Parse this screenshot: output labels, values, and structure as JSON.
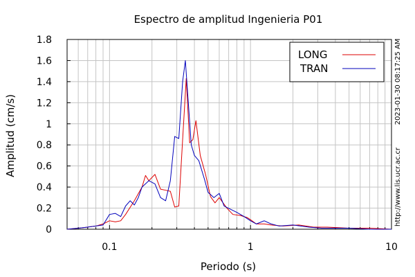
{
  "chart_data": {
    "type": "line",
    "title": "Espectro de amplitud Ingenieria P01",
    "xlabel": "Periodo (s)",
    "ylabel": "Amplitud (cm/s)",
    "x_scale": "log",
    "xlim": [
      0.05,
      10
    ],
    "ylim": [
      0,
      1.8
    ],
    "grid": true,
    "legend_position": "top-right",
    "x_ticks": [
      {
        "value": 0.1,
        "label": "0.1"
      },
      {
        "value": 1,
        "label": "1"
      },
      {
        "value": 10,
        "label": "10"
      }
    ],
    "y_ticks": [
      {
        "value": 0,
        "label": "0"
      },
      {
        "value": 0.2,
        "label": "0.2"
      },
      {
        "value": 0.4,
        "label": "0.4"
      },
      {
        "value": 0.6,
        "label": "0.6"
      },
      {
        "value": 0.8,
        "label": "0.8"
      },
      {
        "value": 1.0,
        "label": "1"
      },
      {
        "value": 1.2,
        "label": "1.2"
      },
      {
        "value": 1.4,
        "label": "1.4"
      },
      {
        "value": 1.6,
        "label": "1.6"
      },
      {
        "value": 1.8,
        "label": "1.8"
      }
    ],
    "series": [
      {
        "name": "LONG",
        "color": "#dd0000",
        "points": [
          [
            0.05,
            0.0
          ],
          [
            0.06,
            0.01
          ],
          [
            0.07,
            0.02
          ],
          [
            0.08,
            0.03
          ],
          [
            0.09,
            0.05
          ],
          [
            0.1,
            0.08
          ],
          [
            0.11,
            0.07
          ],
          [
            0.12,
            0.08
          ],
          [
            0.13,
            0.14
          ],
          [
            0.15,
            0.27
          ],
          [
            0.17,
            0.4
          ],
          [
            0.18,
            0.51
          ],
          [
            0.19,
            0.46
          ],
          [
            0.21,
            0.52
          ],
          [
            0.23,
            0.38
          ],
          [
            0.25,
            0.37
          ],
          [
            0.27,
            0.36
          ],
          [
            0.29,
            0.21
          ],
          [
            0.31,
            0.22
          ],
          [
            0.33,
            0.85
          ],
          [
            0.35,
            1.43
          ],
          [
            0.37,
            0.82
          ],
          [
            0.39,
            0.85
          ],
          [
            0.41,
            1.03
          ],
          [
            0.44,
            0.7
          ],
          [
            0.48,
            0.52
          ],
          [
            0.52,
            0.31
          ],
          [
            0.56,
            0.25
          ],
          [
            0.6,
            0.3
          ],
          [
            0.68,
            0.2
          ],
          [
            0.75,
            0.14
          ],
          [
            0.85,
            0.13
          ],
          [
            0.95,
            0.11
          ],
          [
            1.0,
            0.09
          ],
          [
            1.1,
            0.05
          ],
          [
            1.25,
            0.05
          ],
          [
            1.4,
            0.04
          ],
          [
            1.7,
            0.03
          ],
          [
            2.2,
            0.04
          ],
          [
            2.8,
            0.02
          ],
          [
            3.5,
            0.02
          ],
          [
            5.0,
            0.01
          ],
          [
            7.0,
            0.01
          ],
          [
            10.0,
            0.0
          ]
        ]
      },
      {
        "name": "TRAN",
        "color": "#0000bb",
        "points": [
          [
            0.05,
            0.0
          ],
          [
            0.06,
            0.01
          ],
          [
            0.07,
            0.02
          ],
          [
            0.08,
            0.03
          ],
          [
            0.09,
            0.04
          ],
          [
            0.1,
            0.14
          ],
          [
            0.11,
            0.15
          ],
          [
            0.12,
            0.12
          ],
          [
            0.13,
            0.22
          ],
          [
            0.14,
            0.27
          ],
          [
            0.15,
            0.23
          ],
          [
            0.16,
            0.3
          ],
          [
            0.17,
            0.4
          ],
          [
            0.19,
            0.46
          ],
          [
            0.21,
            0.43
          ],
          [
            0.23,
            0.3
          ],
          [
            0.25,
            0.27
          ],
          [
            0.27,
            0.46
          ],
          [
            0.29,
            0.88
          ],
          [
            0.31,
            0.86
          ],
          [
            0.33,
            1.4
          ],
          [
            0.345,
            1.6
          ],
          [
            0.36,
            1.25
          ],
          [
            0.38,
            0.8
          ],
          [
            0.4,
            0.7
          ],
          [
            0.43,
            0.65
          ],
          [
            0.47,
            0.48
          ],
          [
            0.5,
            0.35
          ],
          [
            0.55,
            0.3
          ],
          [
            0.6,
            0.34
          ],
          [
            0.65,
            0.22
          ],
          [
            0.72,
            0.19
          ],
          [
            0.8,
            0.16
          ],
          [
            0.9,
            0.12
          ],
          [
            1.0,
            0.08
          ],
          [
            1.1,
            0.05
          ],
          [
            1.25,
            0.08
          ],
          [
            1.4,
            0.05
          ],
          [
            1.6,
            0.03
          ],
          [
            2.0,
            0.04
          ],
          [
            2.6,
            0.02
          ],
          [
            3.2,
            0.01
          ],
          [
            5.0,
            0.01
          ],
          [
            7.0,
            0.0
          ],
          [
            10.0,
            0.0
          ]
        ]
      }
    ]
  },
  "side_labels": {
    "timestamp": "2023-01-30 08:17:25 AM",
    "website": "http://www.lis.ucr.ac.cr"
  }
}
